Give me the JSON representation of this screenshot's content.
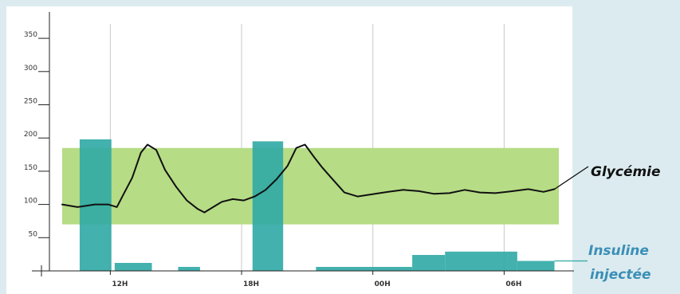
{
  "colors": {
    "outer_background": "#dcebef",
    "plot_background": "#ffffff",
    "target_band": "#b6dc85",
    "insulin": "#2fa8a5",
    "glucose_line": "#111111",
    "insulin_label": "#3a8fb7"
  },
  "chart_data": {
    "type": "line",
    "title": "",
    "xlabel": "",
    "ylabel": "",
    "ylim": [
      0,
      370
    ],
    "y_ticks": [
      "350",
      "300",
      "250",
      "200",
      "150",
      "100",
      "50"
    ],
    "y_tick_values": [
      350,
      300,
      250,
      200,
      150,
      100,
      50
    ],
    "x_ticks": [
      "12H",
      "18H",
      "00H",
      "06H"
    ],
    "x_tick_hours": [
      12,
      18,
      24,
      30
    ],
    "x_range_hours": [
      9.8,
      32.5
    ],
    "grid": "vertical",
    "target_band": {
      "low": 70,
      "high": 185
    },
    "series": [
      {
        "name": "Glycémie",
        "kind": "line",
        "x_hours": [
          9.8,
          10.5,
          11.3,
          11.9,
          12.3,
          12.6,
          13.0,
          13.4,
          13.7,
          14.1,
          14.5,
          15.0,
          15.5,
          16.0,
          16.3,
          16.7,
          17.1,
          17.6,
          18.1,
          18.6,
          19.1,
          19.6,
          20.1,
          20.5,
          20.9,
          21.3,
          21.7,
          22.1,
          22.7,
          23.3,
          24.1,
          24.7,
          25.4,
          26.1,
          26.8,
          27.5,
          28.2,
          28.9,
          29.6,
          30.4,
          31.1,
          31.8,
          32.3
        ],
        "y": [
          100,
          96,
          100,
          100,
          96,
          115,
          140,
          178,
          190,
          182,
          152,
          127,
          106,
          93,
          88,
          96,
          104,
          108,
          106,
          112,
          122,
          138,
          158,
          185,
          190,
          172,
          155,
          140,
          118,
          112,
          116,
          119,
          122,
          120,
          116,
          117,
          122,
          118,
          117,
          120,
          123,
          119,
          123
        ]
      },
      {
        "name": "Insuline injectée",
        "kind": "bars",
        "blocks": [
          {
            "start": 10.6,
            "end": 12.05,
            "value": 198
          },
          {
            "start": 12.2,
            "end": 13.9,
            "value": 12
          },
          {
            "start": 15.1,
            "end": 16.1,
            "value": 6
          },
          {
            "start": 18.5,
            "end": 19.9,
            "value": 195
          },
          {
            "start": 21.4,
            "end": 25.8,
            "value": 6
          },
          {
            "start": 25.8,
            "end": 27.3,
            "value": 24
          },
          {
            "start": 27.3,
            "end": 30.6,
            "value": 29
          },
          {
            "start": 30.6,
            "end": 32.3,
            "value": 15
          }
        ]
      }
    ]
  },
  "labels": {
    "glycemie": "Glycémie",
    "insuline_line1": "Insuline",
    "insuline_line2": "injectée"
  }
}
